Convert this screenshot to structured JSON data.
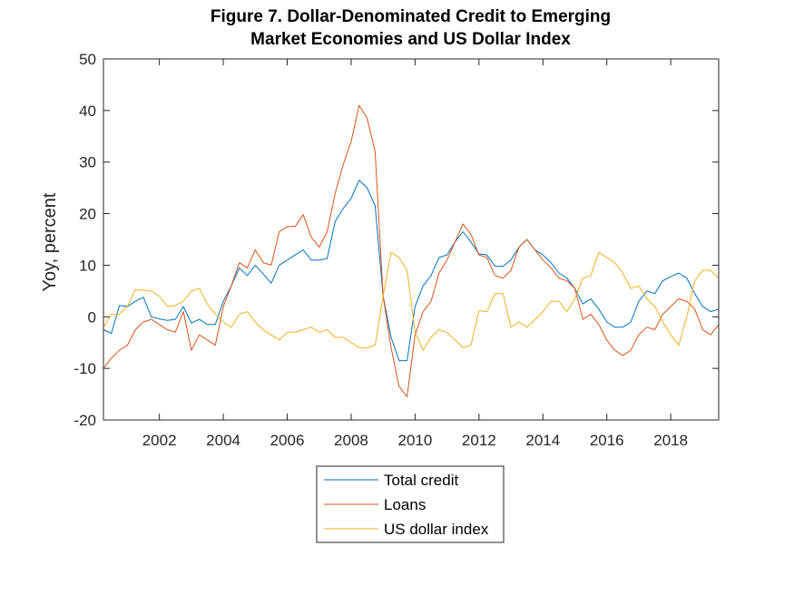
{
  "chart_data": {
    "type": "line",
    "title_line1": "Figure 7.  Dollar-Denominated Credit to Emerging",
    "title_line2": "Market Economies and US Dollar Index",
    "xlabel": "",
    "ylabel": "Yoy, percent",
    "xlim": [
      2000.25,
      2019.5
    ],
    "ylim": [
      -20,
      50
    ],
    "yticks": [
      -20,
      -10,
      0,
      10,
      20,
      30,
      40,
      50
    ],
    "xticks": [
      2002,
      2004,
      2006,
      2008,
      2010,
      2012,
      2014,
      2016,
      2018
    ],
    "grid": false,
    "legend_position": "bottom-outside",
    "x": [
      2000.25,
      2000.5,
      2000.75,
      2001,
      2001.25,
      2001.5,
      2001.75,
      2002,
      2002.25,
      2002.5,
      2002.75,
      2003,
      2003.25,
      2003.5,
      2003.75,
      2004,
      2004.25,
      2004.5,
      2004.75,
      2005,
      2005.25,
      2005.5,
      2005.75,
      2006,
      2006.25,
      2006.5,
      2006.75,
      2007,
      2007.25,
      2007.5,
      2007.75,
      2008,
      2008.25,
      2008.5,
      2008.75,
      2009,
      2009.25,
      2009.5,
      2009.75,
      2010,
      2010.25,
      2010.5,
      2010.75,
      2011,
      2011.25,
      2011.5,
      2011.75,
      2012,
      2012.25,
      2012.5,
      2012.75,
      2013,
      2013.25,
      2013.5,
      2013.75,
      2014,
      2014.25,
      2014.5,
      2014.75,
      2015,
      2015.25,
      2015.5,
      2015.75,
      2016,
      2016.25,
      2016.5,
      2016.75,
      2017,
      2017.25,
      2017.5,
      2017.75,
      2018,
      2018.25,
      2018.5,
      2018.75,
      2019,
      2019.25,
      2019.5
    ],
    "series": [
      {
        "name": "Total credit",
        "color": "#0072BD",
        "values": [
          -2.5,
          -3.2,
          2.2,
          2.0,
          3.0,
          3.8,
          0,
          -0.4,
          -0.7,
          -0.5,
          2.0,
          -1.2,
          -0.5,
          -1.5,
          -1.5,
          3.0,
          6.0,
          9.5,
          8.0,
          10.0,
          8.3,
          6.5,
          10.0,
          11.0,
          12.0,
          13.0,
          11.0,
          11.0,
          11.3,
          18.5,
          21.0,
          23.0,
          26.5,
          25.0,
          21.5,
          4.0,
          -4.0,
          -8.5,
          -8.5,
          2.0,
          6.0,
          8.0,
          11.5,
          12.0,
          14.5,
          16.5,
          14.5,
          12.2,
          12.0,
          9.8,
          9.8,
          11.0,
          13.5,
          15.0,
          13.0,
          12.0,
          10.5,
          8.5,
          7.5,
          5.5,
          2.5,
          3.5,
          1.5,
          -1.0,
          -2.0,
          -2.0,
          -1.0,
          3.0,
          5.0,
          4.5,
          7.0,
          7.8,
          8.5,
          7.5,
          4.5,
          2.0,
          1.0,
          1.5
        ]
      },
      {
        "name": "Loans",
        "color": "#D95319",
        "values": [
          -10.0,
          -8.0,
          -6.5,
          -5.5,
          -2.5,
          -1.0,
          -0.5,
          -1.5,
          -2.5,
          -3.0,
          1.0,
          -6.5,
          -3.5,
          -4.5,
          -5.5,
          2.0,
          6.0,
          10.5,
          9.5,
          13.0,
          10.5,
          10.0,
          16.5,
          17.5,
          17.5,
          19.8,
          15.5,
          13.5,
          16.5,
          24.0,
          29.5,
          34.0,
          41.0,
          38.5,
          32.0,
          4.0,
          -6.0,
          -13.5,
          -15.5,
          -3.5,
          1.0,
          3.0,
          8.5,
          11.0,
          14.5,
          18.0,
          16.0,
          12.0,
          11.5,
          8.0,
          7.5,
          9.0,
          13.5,
          15.0,
          13.0,
          11.0,
          9.5,
          7.5,
          7.0,
          5.5,
          -0.5,
          0.5,
          -1.5,
          -4.5,
          -6.5,
          -7.5,
          -6.5,
          -3.5,
          -2.0,
          -2.5,
          0.5,
          2.0,
          3.5,
          3.0,
          1.5,
          -2.5,
          -3.5,
          -1.5
        ]
      },
      {
        "name": "US dollar index",
        "color": "#EDB120",
        "values": [
          -2.0,
          0.5,
          0.5,
          2.0,
          5.3,
          5.2,
          5.0,
          4.0,
          2.0,
          2.2,
          3.0,
          5.0,
          5.5,
          2.5,
          0.5,
          -1.0,
          -2.0,
          0.5,
          1.0,
          -1.0,
          -2.5,
          -3.5,
          -4.5,
          -3.0,
          -3.0,
          -2.5,
          -2.0,
          -3.0,
          -2.5,
          -4.0,
          -4.0,
          -5.0,
          -6.0,
          -6.0,
          -5.5,
          4.0,
          12.5,
          11.5,
          9.0,
          -3.0,
          -6.5,
          -4.0,
          -2.5,
          -3.0,
          -4.5,
          -6.0,
          -5.5,
          1.2,
          1.0,
          4.5,
          4.5,
          -2.0,
          -1.0,
          -2.0,
          -0.5,
          1.0,
          3.0,
          3.0,
          1.0,
          3.5,
          7.5,
          8.0,
          12.5,
          11.5,
          10.5,
          8.5,
          5.5,
          6.0,
          3.5,
          2.0,
          -1.0,
          -3.5,
          -5.5,
          0.0,
          7.0,
          9.0,
          9.0,
          7.5
        ]
      }
    ]
  }
}
